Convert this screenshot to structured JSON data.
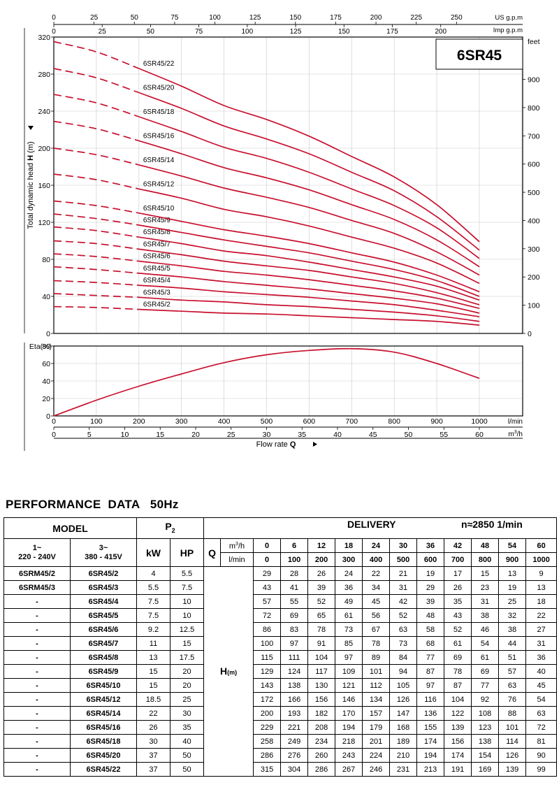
{
  "chart_data": [
    {
      "type": "line",
      "title": "6SR45",
      "ylabel_prefix": "Total dynamic head ",
      "ylabel_bold": "H",
      "ylabel_suffix": " (m)",
      "right_axis_label": "feet",
      "top_axis_us_label": "US g.p.m",
      "top_axis_imp_label": "Imp g.p.m",
      "xlim": [
        0,
        1000
      ],
      "ylim": [
        0,
        320
      ],
      "y_ticks": [
        0,
        40,
        80,
        120,
        160,
        200,
        240,
        280,
        320
      ],
      "feet_ticks": [
        0,
        100,
        200,
        300,
        400,
        500,
        600,
        700,
        800,
        900
      ],
      "us_gpm_ticks": [
        0,
        25,
        50,
        75,
        100,
        125,
        150,
        175,
        200,
        225,
        250
      ],
      "imp_gpm_ticks": [
        0,
        25,
        50,
        75,
        100,
        125,
        150,
        175,
        200
      ],
      "line_color": "#c8102e",
      "grid": true,
      "dashed_until_lpm": 200,
      "x": [
        0,
        100,
        200,
        300,
        400,
        500,
        600,
        700,
        800,
        900,
        1000
      ],
      "series": [
        {
          "name": "6SR45/2",
          "values": [
            29,
            28,
            26,
            24,
            22,
            21,
            19,
            17,
            15,
            13,
            9
          ]
        },
        {
          "name": "6SR45/3",
          "values": [
            43,
            41,
            39,
            36,
            34,
            31,
            29,
            26,
            23,
            19,
            13
          ]
        },
        {
          "name": "6SR45/4",
          "values": [
            57,
            55,
            52,
            49,
            45,
            42,
            39,
            35,
            31,
            25,
            18
          ]
        },
        {
          "name": "6SR45/5",
          "values": [
            72,
            69,
            65,
            61,
            56,
            52,
            48,
            43,
            38,
            32,
            22
          ]
        },
        {
          "name": "6SR45/6",
          "values": [
            86,
            83,
            78,
            73,
            67,
            63,
            58,
            52,
            46,
            38,
            27
          ]
        },
        {
          "name": "6SR45/7",
          "values": [
            100,
            97,
            91,
            85,
            78,
            73,
            68,
            61,
            54,
            44,
            31
          ]
        },
        {
          "name": "6SR45/8",
          "values": [
            115,
            111,
            104,
            97,
            89,
            84,
            77,
            69,
            61,
            51,
            36
          ]
        },
        {
          "name": "6SR45/9",
          "values": [
            129,
            124,
            117,
            109,
            101,
            94,
            87,
            78,
            69,
            57,
            40
          ]
        },
        {
          "name": "6SR45/10",
          "values": [
            143,
            138,
            130,
            121,
            112,
            105,
            97,
            87,
            77,
            63,
            45
          ]
        },
        {
          "name": "6SR45/12",
          "values": [
            172,
            166,
            156,
            146,
            134,
            126,
            116,
            104,
            92,
            76,
            54
          ]
        },
        {
          "name": "6SR45/14",
          "values": [
            200,
            193,
            182,
            170,
            157,
            147,
            136,
            122,
            108,
            88,
            63
          ]
        },
        {
          "name": "6SR45/16",
          "values": [
            229,
            221,
            208,
            194,
            179,
            168,
            155,
            139,
            123,
            101,
            72
          ]
        },
        {
          "name": "6SR45/18",
          "values": [
            258,
            249,
            234,
            218,
            201,
            189,
            174,
            156,
            138,
            114,
            81
          ]
        },
        {
          "name": "6SR45/20",
          "values": [
            286,
            276,
            260,
            243,
            224,
            210,
            194,
            174,
            154,
            126,
            90
          ]
        },
        {
          "name": "6SR45/22",
          "values": [
            315,
            304,
            286,
            267,
            246,
            231,
            213,
            191,
            169,
            139,
            99
          ]
        }
      ]
    },
    {
      "type": "line",
      "ylabel": "Eta(%)",
      "xlabel_prefix": "Flow rate ",
      "xlabel_bold": "Q",
      "x_unit_lpm": "l/min",
      "x_unit_m3h_base": "m",
      "x_unit_m3h_sup": "3",
      "x_unit_m3h_tail": "/h",
      "xlim": [
        0,
        1000
      ],
      "ylim": [
        0,
        80
      ],
      "y_ticks": [
        0,
        20,
        40,
        60,
        80
      ],
      "x_ticks_lpm": [
        0,
        100,
        200,
        300,
        400,
        500,
        600,
        700,
        800,
        900,
        1000
      ],
      "x_ticks_m3h": [
        0,
        5,
        10,
        15,
        20,
        25,
        30,
        35,
        40,
        45,
        50,
        55,
        60
      ],
      "line_color": "#c8102e",
      "grid": true,
      "x": [
        0,
        100,
        200,
        300,
        400,
        500,
        600,
        700,
        800,
        900,
        1000
      ],
      "values": [
        0,
        18,
        34,
        48,
        61,
        70,
        75,
        77,
        73,
        60,
        43
      ]
    }
  ],
  "performance": {
    "title": "PERFORMANCE  DATA   50Hz",
    "model_label": "MODEL",
    "p2_label": "P",
    "p2_sub": "2",
    "delivery_label": "DELIVERY",
    "speed_label": "n≈2850 1/min",
    "col_1ph_a": "1~",
    "col_1ph_b": "220 - 240V",
    "col_3ph_a": "3~",
    "col_3ph_b": "380 - 415V",
    "kw_label": "kW",
    "hp_label": "HP",
    "q_label": "Q",
    "unit_m3h_base": "m",
    "unit_m3h_sup": "3",
    "unit_m3h_tail": "/h",
    "unit_lmin": "l/min",
    "h_label": "H",
    "h_unit": "(m)",
    "flow_m3h": [
      0,
      6,
      12,
      18,
      24,
      30,
      36,
      42,
      48,
      54,
      60
    ],
    "flow_lmin": [
      0,
      100,
      200,
      300,
      400,
      500,
      600,
      700,
      800,
      900,
      1000
    ],
    "rows": [
      {
        "single": "6SRM45/2",
        "three": "6SR45/2",
        "kw": "4",
        "hp": "5.5",
        "h": [
          29,
          28,
          26,
          24,
          22,
          21,
          19,
          17,
          15,
          13,
          9
        ]
      },
      {
        "single": "6SRM45/3",
        "three": "6SR45/3",
        "kw": "5.5",
        "hp": "7.5",
        "h": [
          43,
          41,
          39,
          36,
          34,
          31,
          29,
          26,
          23,
          19,
          13
        ]
      },
      {
        "single": "-",
        "three": "6SR45/4",
        "kw": "7.5",
        "hp": "10",
        "h": [
          57,
          55,
          52,
          49,
          45,
          42,
          39,
          35,
          31,
          25,
          18
        ]
      },
      {
        "single": "-",
        "three": "6SR45/5",
        "kw": "7.5",
        "hp": "10",
        "h": [
          72,
          69,
          65,
          61,
          56,
          52,
          48,
          43,
          38,
          32,
          22
        ]
      },
      {
        "single": "-",
        "three": "6SR45/6",
        "kw": "9.2",
        "hp": "12.5",
        "h": [
          86,
          83,
          78,
          73,
          67,
          63,
          58,
          52,
          46,
          38,
          27
        ]
      },
      {
        "single": "-",
        "three": "6SR45/7",
        "kw": "11",
        "hp": "15",
        "h": [
          100,
          97,
          91,
          85,
          78,
          73,
          68,
          61,
          54,
          44,
          31
        ]
      },
      {
        "single": "-",
        "three": "6SR45/8",
        "kw": "13",
        "hp": "17.5",
        "h": [
          115,
          111,
          104,
          97,
          89,
          84,
          77,
          69,
          61,
          51,
          36
        ]
      },
      {
        "single": "-",
        "three": "6SR45/9",
        "kw": "15",
        "hp": "20",
        "h": [
          129,
          124,
          117,
          109,
          101,
          94,
          87,
          78,
          69,
          57,
          40
        ]
      },
      {
        "single": "-",
        "three": "6SR45/10",
        "kw": "15",
        "hp": "20",
        "h": [
          143,
          138,
          130,
          121,
          112,
          105,
          97,
          87,
          77,
          63,
          45
        ]
      },
      {
        "single": "-",
        "three": "6SR45/12",
        "kw": "18.5",
        "hp": "25",
        "h": [
          172,
          166,
          156,
          146,
          134,
          126,
          116,
          104,
          92,
          76,
          54
        ]
      },
      {
        "single": "-",
        "three": "6SR45/14",
        "kw": "22",
        "hp": "30",
        "h": [
          200,
          193,
          182,
          170,
          157,
          147,
          136,
          122,
          108,
          88,
          63
        ]
      },
      {
        "single": "-",
        "three": "6SR45/16",
        "kw": "26",
        "hp": "35",
        "h": [
          229,
          221,
          208,
          194,
          179,
          168,
          155,
          139,
          123,
          101,
          72
        ]
      },
      {
        "single": "-",
        "three": "6SR45/18",
        "kw": "30",
        "hp": "40",
        "h": [
          258,
          249,
          234,
          218,
          201,
          189,
          174,
          156,
          138,
          114,
          81
        ]
      },
      {
        "single": "-",
        "three": "6SR45/20",
        "kw": "37",
        "hp": "50",
        "h": [
          286,
          276,
          260,
          243,
          224,
          210,
          194,
          174,
          154,
          126,
          90
        ]
      },
      {
        "single": "-",
        "three": "6SR45/22",
        "kw": "37",
        "hp": "50",
        "h": [
          315,
          304,
          286,
          267,
          246,
          231,
          213,
          191,
          169,
          139,
          99
        ]
      }
    ]
  }
}
